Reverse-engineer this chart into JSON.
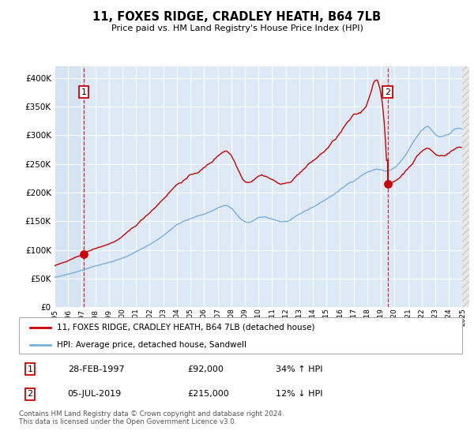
{
  "title": "11, FOXES RIDGE, CRADLEY HEATH, B64 7LB",
  "subtitle": "Price paid vs. HM Land Registry's House Price Index (HPI)",
  "ylim": [
    0,
    420000
  ],
  "yticks": [
    0,
    50000,
    100000,
    150000,
    200000,
    250000,
    300000,
    350000,
    400000
  ],
  "ytick_labels": [
    "£0",
    "£50K",
    "£100K",
    "£150K",
    "£200K",
    "£250K",
    "£300K",
    "£350K",
    "£400K"
  ],
  "xmin": 1995.0,
  "xmax": 2025.5,
  "background_color": "#ddeaf6",
  "grid_color": "#ffffff",
  "red_color": "#cc0000",
  "blue_color": "#7aade0",
  "legend_label_red": "11, FOXES RIDGE, CRADLEY HEATH, B64 7LB (detached house)",
  "legend_label_blue": "HPI: Average price, detached house, Sandwell",
  "annotation1_date": "28-FEB-1997",
  "annotation1_price": "£92,000",
  "annotation1_hpi": "34% ↑ HPI",
  "annotation2_date": "05-JUL-2019",
  "annotation2_price": "£215,000",
  "annotation2_hpi": "12% ↓ HPI",
  "footer": "Contains HM Land Registry data © Crown copyright and database right 2024.\nThis data is licensed under the Open Government Licence v3.0.",
  "sale1_year": 1997.15,
  "sale1_price": 92000,
  "sale2_year": 2019.5,
  "sale2_price": 215000
}
